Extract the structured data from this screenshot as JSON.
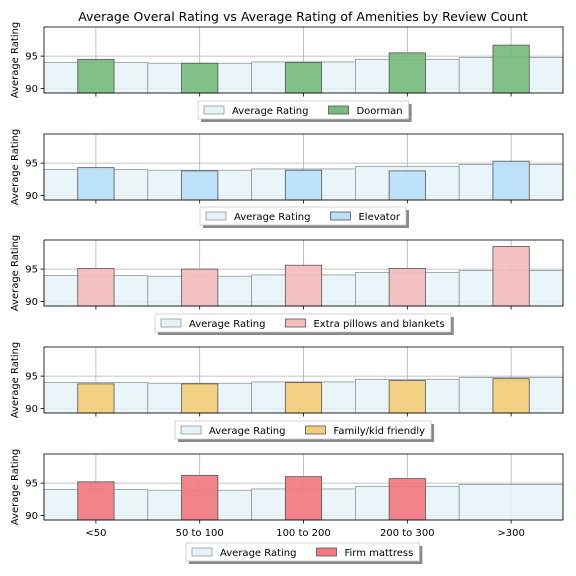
{
  "chart_data": {
    "type": "bar",
    "title": "Average Overal Rating vs Average Rating of Amenities by Review Count",
    "categories": [
      "<50",
      "50 to 100",
      "100 to 200",
      "200 to 300",
      ">300"
    ],
    "ylabel": "Average Rating",
    "ylim": [
      89.3,
      99.5
    ],
    "yticks": [
      90,
      95
    ],
    "grid": true,
    "legend_position": "bottom-center",
    "baseline": {
      "name": "Average Rating",
      "values": [
        94.0,
        93.9,
        94.1,
        94.5,
        94.8
      ],
      "color": "#e5f3f7"
    },
    "panels": [
      {
        "amenity": "Doorman",
        "color": "#78bb7d",
        "values": [
          94.5,
          93.9,
          94.0,
          95.5,
          96.7
        ]
      },
      {
        "amenity": "Elevator",
        "color": "#b9e0f8",
        "values": [
          94.3,
          93.8,
          93.9,
          93.8,
          95.3
        ]
      },
      {
        "amenity": "Extra pillows and blankets",
        "color": "#f4bcbe",
        "values": [
          95.1,
          95.0,
          95.6,
          95.1,
          98.5
        ]
      },
      {
        "amenity": "Family/kid friendly",
        "color": "#f3cd7a",
        "values": [
          93.8,
          93.8,
          94.0,
          94.3,
          94.6
        ]
      },
      {
        "amenity": "Firm mattress",
        "color": "#f27a7f",
        "values": [
          95.2,
          96.2,
          96.0,
          95.7,
          null
        ]
      }
    ]
  }
}
